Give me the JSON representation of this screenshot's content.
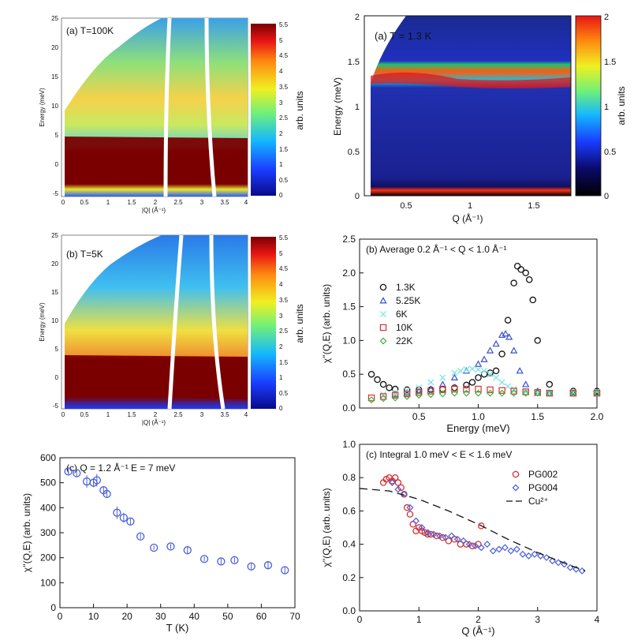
{
  "panels": {
    "a_left": {
      "title": "(a) T=100K",
      "xlabel": "|Q| (Å⁻¹)",
      "ylabel": "Energy (meV)",
      "xticks": [
        "0",
        "0.5",
        "1",
        "1.5",
        "2",
        "2.5",
        "3",
        "3.5",
        "4"
      ],
      "yticks": [
        "25",
        "20",
        "15",
        "10",
        "5",
        "0",
        "-5"
      ],
      "colorbar_label": "arb. units",
      "colorbar_ticks": [
        "5.5",
        "5",
        "4.5",
        "4",
        "3.5",
        "3",
        "2.5",
        "2",
        "1.5",
        "1",
        "0.5",
        "0"
      ]
    },
    "b_left": {
      "title": "(b) T=5K",
      "xlabel": "|Q| (Å⁻¹)",
      "ylabel": "Energy (meV)",
      "xticks": [
        "0",
        "0.5",
        "1",
        "1.5",
        "2",
        "2.5",
        "3",
        "3.5",
        "4"
      ],
      "yticks": [
        "25",
        "20",
        "15",
        "10",
        "5",
        "0",
        "-5"
      ],
      "colorbar_label": "arb. units",
      "colorbar_ticks": [
        "5.5",
        "5",
        "4.5",
        "4",
        "3.5",
        "3",
        "2.5",
        "2",
        "1.5",
        "1",
        "0.5",
        "0"
      ]
    },
    "a_right": {
      "title": "(a) T = 1.3 K",
      "xlabel": "Q (Å⁻¹)",
      "ylabel": "Energy (meV)",
      "xticks": [
        "0.5",
        "1",
        "1.5"
      ],
      "yticks": [
        "2",
        "1.5",
        "1",
        "0.5",
        "0"
      ],
      "colorbar_label": "arb. units",
      "colorbar_ticks": [
        "2",
        "1.5",
        "1",
        "0.5",
        "0"
      ]
    }
  },
  "chart_data": [
    {
      "id": "spectrum",
      "type": "scatter",
      "title": "(b) Average 0.2 Å⁻¹ < Q < 1.0 Å⁻¹",
      "xlabel": "Energy (meV)",
      "ylabel": "χ''(Q,E) (arb. units)",
      "xlim": [
        0,
        2.0
      ],
      "ylim": [
        0,
        2.5
      ],
      "xticks": [
        "0.5",
        "1.0",
        "1.5",
        "2.0"
      ],
      "yticks": [
        "0.0",
        "0.5",
        "1.0",
        "1.5",
        "2.0",
        "2.5"
      ],
      "series": [
        {
          "name": "1.3K",
          "marker": "o",
          "color": "#111111",
          "x": [
            0.1,
            0.15,
            0.2,
            0.25,
            0.3,
            0.4,
            0.5,
            0.6,
            0.7,
            0.8,
            0.9,
            0.95,
            1.0,
            1.05,
            1.1,
            1.15,
            1.2,
            1.25,
            1.3,
            1.33,
            1.36,
            1.4,
            1.43,
            1.46,
            1.5,
            1.6,
            1.8,
            2.0
          ],
          "y": [
            0.5,
            0.42,
            0.35,
            0.3,
            0.28,
            0.27,
            0.27,
            0.27,
            0.28,
            0.3,
            0.34,
            0.38,
            0.45,
            0.5,
            0.52,
            0.55,
            0.8,
            1.3,
            1.85,
            2.1,
            2.05,
            2.0,
            1.9,
            1.6,
            1.0,
            0.35,
            0.25,
            0.25
          ]
        },
        {
          "name": "5.25K",
          "marker": "triangle",
          "color": "#3a4fd0",
          "x": [
            0.3,
            0.4,
            0.5,
            0.6,
            0.7,
            0.8,
            0.9,
            1.0,
            1.05,
            1.1,
            1.15,
            1.2,
            1.23,
            1.26,
            1.3,
            1.35,
            1.4,
            1.5,
            1.6,
            1.8,
            2.0
          ],
          "y": [
            0.2,
            0.22,
            0.25,
            0.28,
            0.35,
            0.45,
            0.55,
            0.65,
            0.72,
            0.85,
            0.95,
            1.08,
            1.1,
            1.05,
            0.85,
            0.55,
            0.35,
            0.25,
            0.22,
            0.22,
            0.23
          ]
        },
        {
          "name": "6K",
          "marker": "x",
          "color": "#7fe6e6",
          "x": [
            0.2,
            0.3,
            0.4,
            0.5,
            0.6,
            0.7,
            0.8,
            0.85,
            0.9,
            0.95,
            1.0,
            1.05,
            1.1,
            1.15,
            1.2,
            1.25,
            1.3,
            1.4,
            1.5,
            1.6,
            1.8,
            2.0
          ],
          "y": [
            0.2,
            0.22,
            0.26,
            0.3,
            0.38,
            0.45,
            0.52,
            0.55,
            0.57,
            0.58,
            0.57,
            0.55,
            0.5,
            0.45,
            0.38,
            0.32,
            0.28,
            0.24,
            0.22,
            0.22,
            0.23,
            0.24
          ]
        },
        {
          "name": "10K",
          "marker": "square",
          "color": "#d93030",
          "x": [
            0.1,
            0.2,
            0.3,
            0.4,
            0.5,
            0.6,
            0.7,
            0.8,
            0.9,
            1.0,
            1.1,
            1.2,
            1.3,
            1.4,
            1.5,
            1.6,
            1.8,
            2.0
          ],
          "y": [
            0.15,
            0.17,
            0.19,
            0.21,
            0.23,
            0.25,
            0.27,
            0.28,
            0.28,
            0.28,
            0.27,
            0.26,
            0.25,
            0.24,
            0.23,
            0.22,
            0.22,
            0.22
          ]
        },
        {
          "name": "22K",
          "marker": "diamond",
          "color": "#40b040",
          "x": [
            0.1,
            0.2,
            0.3,
            0.4,
            0.5,
            0.6,
            0.7,
            0.8,
            0.9,
            1.0,
            1.1,
            1.2,
            1.3,
            1.4,
            1.5,
            1.6,
            1.8,
            2.0
          ],
          "y": [
            0.12,
            0.14,
            0.15,
            0.17,
            0.19,
            0.2,
            0.21,
            0.22,
            0.22,
            0.22,
            0.22,
            0.22,
            0.22,
            0.22,
            0.22,
            0.22,
            0.22,
            0.22
          ]
        }
      ]
    },
    {
      "id": "temperature",
      "type": "scatter",
      "title": "(c) Q = 1.2 Å⁻¹   E = 7 meV",
      "xlabel": "T (K)",
      "ylabel": "χ''(Q,E) (arb. units)",
      "xlim": [
        0,
        70
      ],
      "ylim": [
        0,
        600
      ],
      "xticks": [
        "0",
        "10",
        "20",
        "30",
        "40",
        "50",
        "60",
        "70"
      ],
      "yticks": [
        "0",
        "100",
        "200",
        "300",
        "400",
        "500",
        "600"
      ],
      "series": [
        {
          "name": "data",
          "marker": "o",
          "color": "#4a5fd8",
          "x": [
            2.5,
            5,
            8,
            10,
            11,
            13,
            14,
            17,
            19,
            21,
            24,
            28,
            33,
            38,
            43,
            48,
            52,
            57,
            62,
            67
          ],
          "y": [
            545,
            538,
            505,
            500,
            510,
            470,
            455,
            380,
            360,
            345,
            285,
            240,
            245,
            230,
            195,
            185,
            190,
            165,
            170,
            150
          ],
          "err": [
            12,
            12,
            25,
            18,
            25,
            15,
            15,
            25,
            20,
            15,
            10,
            8,
            10,
            12,
            10,
            12,
            10,
            12,
            15,
            15
          ]
        }
      ]
    },
    {
      "id": "integral",
      "type": "scatter",
      "title": "(c) Integral 1.0 meV < E < 1.6 meV",
      "xlabel": "Q (Å⁻¹)",
      "ylabel": "χ''(Q,E) (arb. units)",
      "xlim": [
        0,
        4
      ],
      "ylim": [
        0,
        1.0
      ],
      "xticks": [
        "0",
        "1",
        "2",
        "3",
        "4"
      ],
      "yticks": [
        "0.0",
        "0.2",
        "0.4",
        "0.6",
        "0.8",
        "1.0"
      ],
      "series": [
        {
          "name": "PG002",
          "marker": "o",
          "color": "#d93030",
          "x": [
            0.4,
            0.45,
            0.5,
            0.55,
            0.6,
            0.65,
            0.7,
            0.75,
            0.8,
            0.85,
            0.9,
            0.95,
            1.0,
            1.05,
            1.1,
            1.15,
            1.2,
            1.3,
            1.4,
            1.5,
            1.6,
            1.7,
            1.8,
            1.9,
            2.0,
            2.05
          ],
          "y": [
            0.77,
            0.79,
            0.8,
            0.78,
            0.8,
            0.77,
            0.74,
            0.7,
            0.62,
            0.58,
            0.52,
            0.48,
            0.5,
            0.48,
            0.47,
            0.46,
            0.46,
            0.45,
            0.44,
            0.42,
            0.43,
            0.4,
            0.4,
            0.39,
            0.4,
            0.51
          ]
        },
        {
          "name": "PG004",
          "marker": "diamond",
          "color": "#4a5fd8",
          "x": [
            0.55,
            0.65,
            0.75,
            0.85,
            0.95,
            1.05,
            1.15,
            1.25,
            1.35,
            1.45,
            1.55,
            1.65,
            1.75,
            1.85,
            1.95,
            2.05,
            2.15,
            2.25,
            2.35,
            2.45,
            2.55,
            2.65,
            2.75,
            2.85,
            2.95,
            3.05,
            3.15,
            3.25,
            3.35,
            3.45,
            3.55,
            3.65,
            3.75
          ],
          "y": [
            0.77,
            0.73,
            0.7,
            0.62,
            0.54,
            0.5,
            0.47,
            0.46,
            0.45,
            0.44,
            0.45,
            0.43,
            0.42,
            0.4,
            0.39,
            0.38,
            0.4,
            0.36,
            0.37,
            0.38,
            0.36,
            0.37,
            0.34,
            0.33,
            0.34,
            0.33,
            0.32,
            0.3,
            0.29,
            0.28,
            0.26,
            0.25,
            0.24
          ]
        },
        {
          "name": "Cu²⁺",
          "marker": "dash",
          "color": "#111111",
          "x": [
            0,
            0.5,
            1,
            1.5,
            2,
            2.5,
            3,
            3.5,
            3.8
          ],
          "y": [
            0.735,
            0.72,
            0.67,
            0.6,
            0.52,
            0.43,
            0.35,
            0.28,
            0.24
          ]
        }
      ]
    }
  ]
}
